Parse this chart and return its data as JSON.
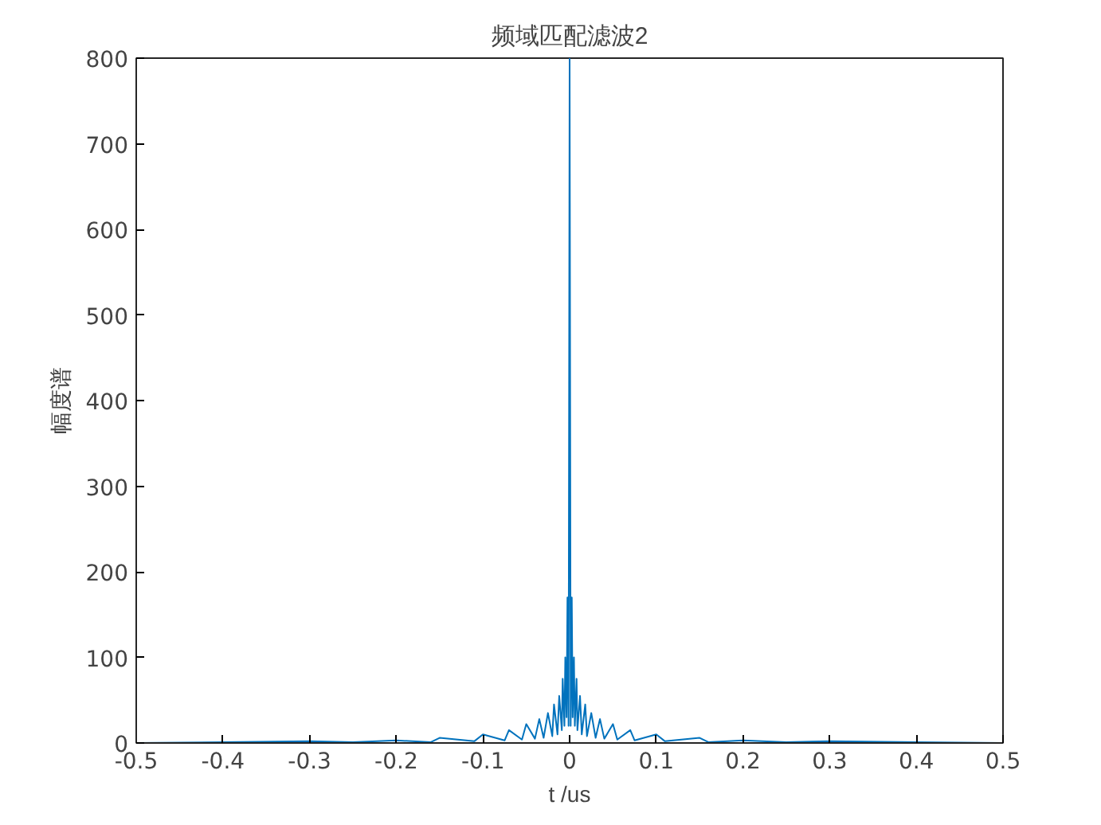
{
  "chart_data": {
    "type": "line",
    "title": "频域匹配滤波2",
    "xlabel": "t /us",
    "ylabel": "幅度谱",
    "x": [
      -0.5,
      -0.4,
      -0.3,
      -0.25,
      -0.2,
      -0.16,
      -0.15,
      -0.11,
      -0.1,
      -0.075,
      -0.07,
      -0.055,
      -0.05,
      -0.04,
      -0.035,
      -0.03,
      -0.025,
      -0.02,
      -0.018,
      -0.014,
      -0.012,
      -0.009,
      -0.008,
      -0.006,
      -0.005,
      -0.0035,
      -0.0025,
      -0.0012,
      0,
      0.0012,
      0.0025,
      0.0035,
      0.005,
      0.006,
      0.008,
      0.009,
      0.012,
      0.014,
      0.018,
      0.02,
      0.025,
      0.03,
      0.035,
      0.04,
      0.05,
      0.055,
      0.07,
      0.075,
      0.1,
      0.11,
      0.15,
      0.16,
      0.2,
      0.25,
      0.3,
      0.4,
      0.5
    ],
    "series": [
      {
        "color": "#0072bd",
        "values": [
          0,
          1,
          2,
          1,
          3,
          1,
          6,
          2,
          10,
          3,
          15,
          4,
          22,
          5,
          28,
          6,
          35,
          8,
          45,
          10,
          55,
          15,
          75,
          20,
          100,
          30,
          170,
          20,
          800,
          20,
          170,
          30,
          100,
          20,
          75,
          15,
          55,
          10,
          45,
          8,
          35,
          6,
          28,
          5,
          22,
          4,
          15,
          3,
          10,
          2,
          6,
          1,
          3,
          1,
          2,
          1,
          0
        ]
      }
    ],
    "xlim": [
      -0.5,
      0.5
    ],
    "xticks": [
      -0.5,
      -0.4,
      -0.3,
      -0.2,
      -0.1,
      0,
      0.1,
      0.2,
      0.3,
      0.4,
      0.5
    ],
    "ylim": [
      0,
      800
    ],
    "yticks": [
      0,
      100,
      200,
      300,
      400,
      500,
      600,
      700,
      800
    ],
    "grid": false,
    "line_style": "solid",
    "marker": "none"
  }
}
